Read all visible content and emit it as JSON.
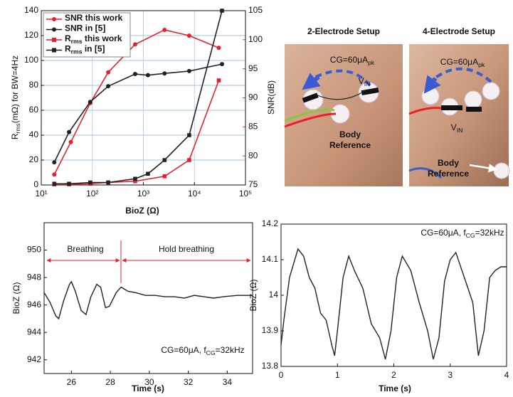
{
  "chart_data": [
    {
      "type": "line",
      "xscale": "log",
      "grid": true,
      "legend": "upper left",
      "xlabel": "BioZ (Ω)",
      "ylabel": {
        "text": "R",
        "sub": "rms",
        "after": "(mΩ) for BW=4Hz"
      },
      "y2label": "SNR(dB)",
      "y2color": "#e0442c",
      "xlim": [
        10,
        100000
      ],
      "xticks": [
        {
          "value": 10,
          "label": "10¹"
        },
        {
          "value": 100,
          "label": "10²"
        },
        {
          "value": 1000,
          "label": "10³"
        },
        {
          "value": 10000,
          "label": "10⁴"
        },
        {
          "value": 100000,
          "label": "10⁵"
        }
      ],
      "ylim": [
        0,
        140
      ],
      "yticks": [
        0,
        20,
        40,
        60,
        80,
        100,
        120,
        140
      ],
      "y2lim": [
        75,
        105
      ],
      "y2ticks": [
        75,
        80,
        85,
        90,
        95,
        100,
        105
      ],
      "series": [
        {
          "name": "SNR this work",
          "color": "#e8202a",
          "marker": "circle",
          "axis": "y2",
          "x": [
            18,
            38,
            91,
            205,
            690,
            2600,
            7900,
            30000
          ],
          "values": [
            76.8,
            82.4,
            89.1,
            94.4,
            99.2,
            101.7,
            100.7,
            98.6
          ]
        },
        {
          "name": "SNR in [5]",
          "color": "#222222",
          "marker": "circle",
          "axis": "y2",
          "x": [
            18,
            35,
            91,
            205,
            690,
            1230,
            2600,
            7900,
            34700
          ],
          "values": [
            78.9,
            84.1,
            89.3,
            92.0,
            94.1,
            93.9,
            94.2,
            94.6,
            95.8
          ]
        },
        {
          "name": {
            "text": "R",
            "sub": "rms",
            "after": " this work"
          },
          "color": "#e8202a",
          "marker": "square",
          "x": [
            18,
            35,
            91,
            205,
            690,
            2600,
            7900,
            30000
          ],
          "values": [
            0.5,
            0.5,
            1,
            2,
            3,
            7,
            20,
            84
          ]
        },
        {
          "name": {
            "text": "R",
            "sub": "rms",
            "after": " in [5]"
          },
          "color": "#222222",
          "marker": "square",
          "x": [
            18,
            35,
            91,
            205,
            690,
            1230,
            2600,
            7900,
            34700
          ],
          "values": [
            1,
            1,
            2,
            2,
            5,
            9,
            20,
            40,
            140
          ]
        }
      ]
    },
    {
      "type": "line",
      "color": "#222222",
      "xlabel": "Time (s)",
      "ylabel": "BioZ (Ω)",
      "xlim": [
        24.6,
        35.3
      ],
      "xticks": [
        26,
        28,
        30,
        32,
        34
      ],
      "ylim": [
        941,
        952
      ],
      "yticks": [
        942,
        944,
        946,
        948,
        950
      ],
      "annotations": [
        "Breathing",
        "Hold breathing"
      ],
      "note": {
        "text": "CG=60μA, f",
        "sub": "CG",
        "after": "=32kHz"
      },
      "x": [
        24.6,
        24.9,
        25.2,
        25.35,
        25.6,
        25.9,
        26.0,
        26.2,
        26.5,
        26.75,
        27.0,
        27.3,
        27.5,
        27.75,
        27.95,
        28.3,
        28.55,
        28.9,
        29.3,
        29.8,
        30.3,
        30.8,
        31.3,
        31.8,
        32.3,
        32.8,
        33.3,
        33.8,
        34.5,
        35.3
      ],
      "values": [
        946.9,
        946.2,
        945.2,
        945.0,
        946.3,
        947.5,
        947.7,
        947.0,
        945.6,
        945.3,
        946.6,
        947.5,
        947.3,
        945.8,
        945.9,
        946.9,
        947.3,
        947.0,
        946.9,
        946.7,
        946.7,
        946.6,
        946.6,
        946.5,
        946.7,
        946.6,
        946.5,
        946.6,
        946.7,
        946.7
      ]
    },
    {
      "type": "line",
      "color": "#222222",
      "xlabel": "Time (s)",
      "ylabel": "BioZ (Ω)",
      "xlim": [
        0,
        4
      ],
      "xticks": [
        0,
        1,
        2,
        3,
        4
      ],
      "ylim": [
        13.8,
        14.2
      ],
      "yticks": [
        13.8,
        13.9,
        14,
        14.1,
        14.2
      ],
      "note": {
        "text": "CG=60μA, f",
        "sub": "CG",
        "after": "=32kHz"
      },
      "x": [
        0,
        0.05,
        0.15,
        0.3,
        0.4,
        0.5,
        0.6,
        0.7,
        0.8,
        0.9,
        0.95,
        1.0,
        1.1,
        1.2,
        1.3,
        1.45,
        1.6,
        1.75,
        1.85,
        1.95,
        2.05,
        2.15,
        2.3,
        2.45,
        2.6,
        2.7,
        2.8,
        2.9,
        3.0,
        3.1,
        3.25,
        3.4,
        3.5,
        3.6,
        3.7,
        3.8,
        3.9,
        4.0
      ],
      "values": [
        13.86,
        13.93,
        14.05,
        14.13,
        14.11,
        14.05,
        14.02,
        13.95,
        13.93,
        13.86,
        13.83,
        13.9,
        14.05,
        14.11,
        14.07,
        14.02,
        13.92,
        13.88,
        13.82,
        13.9,
        14.05,
        14.11,
        14.07,
        13.98,
        13.9,
        13.82,
        13.88,
        14.04,
        14.1,
        14.12,
        14.05,
        13.98,
        13.83,
        13.9,
        14.05,
        14.07,
        14.08,
        14.08
      ]
    }
  ],
  "photos": [
    {
      "title": "2-Electrode Setup",
      "current": {
        "text": "CG=60μA",
        "sub": "pk"
      },
      "voltage": {
        "text": "V",
        "sub": "IN"
      },
      "reference": [
        "Body",
        "Reference"
      ]
    },
    {
      "title": "4-Electrode Setup",
      "current": {
        "text": "CG=60μA",
        "sub": "pk"
      },
      "voltage": {
        "text": "V",
        "sub": "IN"
      },
      "reference": [
        "Body",
        "Reference"
      ]
    }
  ]
}
